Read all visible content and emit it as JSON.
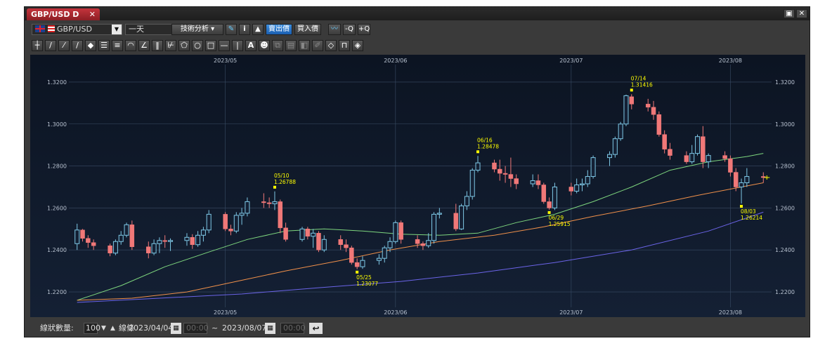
{
  "window": {
    "tab_title": "GBP/USD D",
    "close_glyph": "✕",
    "restore_glyph": "▣"
  },
  "toolbar": {
    "symbol": "GBP/USD",
    "flag_icon": "uk-flag-icon",
    "period": "一天",
    "tech_analysis": "技術分析",
    "info_glyph": "i",
    "sell_price": "賣出價",
    "buy_price": "買入價",
    "zoom_out": "-Q",
    "zoom_in": "+Q"
  },
  "drawing_tools": [
    "crosshair-icon",
    "line-icon",
    "ray-icon",
    "extended-line-icon",
    "ruler-icon",
    "channel-icon",
    "parallel-lines-icon",
    "arc-icon",
    "fibonacci-fan-icon",
    "vertical-lines-icon",
    "pitchfork-icon",
    "polygon-icon",
    "circle-icon",
    "rectangle-icon",
    "horizontal-line-icon",
    "vertical-line-icon",
    "text-icon",
    "icon-stamp-icon",
    "copy-icon",
    "delete-icon",
    "hide-icon",
    "pen-icon",
    "eraser-icon",
    "magnet-icon",
    "tag-icon"
  ],
  "statusbar": {
    "count_label": "線狀數量:",
    "count_value": "100",
    "lines_label": "線條",
    "from_date": "2023/04/04",
    "from_time": "00:00",
    "range_sep": "~",
    "to_date": "2023/08/07",
    "to_time": "00:00"
  },
  "colors": {
    "up_candle": "#7ec8e6",
    "down_candle": "#f07878",
    "ma_short": "#7ed67e",
    "ma_mid": "#f0904a",
    "ma_long": "#6b64e8",
    "annotation": "#ffff00",
    "background": "#142034"
  },
  "chart_data": {
    "type": "candlestick",
    "ylim": [
      1.214,
      1.327
    ],
    "y_ticks": [
      "1.2200",
      "1.2400",
      "1.2600",
      "1.2800",
      "1.3000",
      "1.3200"
    ],
    "month_labels": [
      {
        "date": "2023/05/01",
        "label": "2023/05"
      },
      {
        "date": "2023/06/01",
        "label": "2023/06"
      },
      {
        "date": "2023/07/03",
        "label": "2023/07"
      },
      {
        "date": "2023/08/01",
        "label": "2023/08"
      }
    ],
    "candles": [
      {
        "d": "2023/04/04",
        "o": 1.243,
        "h": 1.2525,
        "l": 1.24,
        "c": 1.2495
      },
      {
        "d": "2023/04/05",
        "o": 1.2495,
        "h": 1.25,
        "l": 1.244,
        "c": 1.2455
      },
      {
        "d": "2023/04/06",
        "o": 1.2455,
        "h": 1.247,
        "l": 1.241,
        "c": 1.2435
      },
      {
        "d": "2023/04/07",
        "o": 1.2435,
        "h": 1.245,
        "l": 1.24,
        "c": 1.242
      },
      {
        "d": "2023/04/10",
        "o": 1.242,
        "h": 1.243,
        "l": 1.237,
        "c": 1.2385
      },
      {
        "d": "2023/04/11",
        "o": 1.2385,
        "h": 1.245,
        "l": 1.2375,
        "c": 1.244
      },
      {
        "d": "2023/04/12",
        "o": 1.244,
        "h": 1.249,
        "l": 1.2425,
        "c": 1.247
      },
      {
        "d": "2023/04/13",
        "o": 1.247,
        "h": 1.253,
        "l": 1.246,
        "c": 1.252
      },
      {
        "d": "2023/04/14",
        "o": 1.252,
        "h": 1.254,
        "l": 1.24,
        "c": 1.2415
      },
      {
        "d": "2023/04/17",
        "o": 1.2415,
        "h": 1.244,
        "l": 1.236,
        "c": 1.2385
      },
      {
        "d": "2023/04/18",
        "o": 1.2385,
        "h": 1.245,
        "l": 1.2375,
        "c": 1.243
      },
      {
        "d": "2023/04/19",
        "o": 1.243,
        "h": 1.246,
        "l": 1.2385,
        "c": 1.2445
      },
      {
        "d": "2023/04/20",
        "o": 1.2445,
        "h": 1.247,
        "l": 1.241,
        "c": 1.244
      },
      {
        "d": "2023/04/21",
        "o": 1.244,
        "h": 1.2455,
        "l": 1.2395,
        "c": 1.2445
      },
      {
        "d": "2023/04/24",
        "o": 1.2445,
        "h": 1.248,
        "l": 1.242,
        "c": 1.246
      },
      {
        "d": "2023/04/25",
        "o": 1.246,
        "h": 1.2475,
        "l": 1.2405,
        "c": 1.2425
      },
      {
        "d": "2023/04/26",
        "o": 1.2425,
        "h": 1.249,
        "l": 1.2415,
        "c": 1.247
      },
      {
        "d": "2023/04/27",
        "o": 1.247,
        "h": 1.251,
        "l": 1.244,
        "c": 1.2495
      },
      {
        "d": "2023/04/28",
        "o": 1.2495,
        "h": 1.259,
        "l": 1.248,
        "c": 1.257
      },
      {
        "d": "2023/05/01",
        "o": 1.257,
        "h": 1.258,
        "l": 1.249,
        "c": 1.25
      },
      {
        "d": "2023/05/02",
        "o": 1.25,
        "h": 1.252,
        "l": 1.247,
        "c": 1.249
      },
      {
        "d": "2023/05/03",
        "o": 1.249,
        "h": 1.258,
        "l": 1.248,
        "c": 1.2565
      },
      {
        "d": "2023/05/04",
        "o": 1.2565,
        "h": 1.26,
        "l": 1.252,
        "c": 1.2575
      },
      {
        "d": "2023/05/05",
        "o": 1.2575,
        "h": 1.265,
        "l": 1.256,
        "c": 1.263
      },
      {
        "d": "2023/05/08",
        "o": 1.263,
        "h": 1.267,
        "l": 1.26,
        "c": 1.2625
      },
      {
        "d": "2023/05/09",
        "o": 1.2625,
        "h": 1.265,
        "l": 1.26,
        "c": 1.262
      },
      {
        "d": "2023/05/10",
        "o": 1.262,
        "h": 1.2679,
        "l": 1.259,
        "c": 1.263
      },
      {
        "d": "2023/05/11",
        "o": 1.263,
        "h": 1.264,
        "l": 1.248,
        "c": 1.2505
      },
      {
        "d": "2023/05/12",
        "o": 1.2505,
        "h": 1.253,
        "l": 1.244,
        "c": 1.245
      },
      {
        "d": "2023/05/15",
        "o": 1.245,
        "h": 1.251,
        "l": 1.244,
        "c": 1.25
      },
      {
        "d": "2023/05/16",
        "o": 1.25,
        "h": 1.251,
        "l": 1.245,
        "c": 1.2465
      },
      {
        "d": "2023/05/17",
        "o": 1.2465,
        "h": 1.25,
        "l": 1.241,
        "c": 1.248
      },
      {
        "d": "2023/05/18",
        "o": 1.248,
        "h": 1.249,
        "l": 1.239,
        "c": 1.24
      },
      {
        "d": "2023/05/19",
        "o": 1.24,
        "h": 1.247,
        "l": 1.239,
        "c": 1.245
      },
      {
        "d": "2023/05/22",
        "o": 1.245,
        "h": 1.247,
        "l": 1.24,
        "c": 1.2425
      },
      {
        "d": "2023/05/23",
        "o": 1.2425,
        "h": 1.245,
        "l": 1.239,
        "c": 1.241
      },
      {
        "d": "2023/05/24",
        "o": 1.241,
        "h": 1.242,
        "l": 1.233,
        "c": 1.234
      },
      {
        "d": "2023/05/25",
        "o": 1.234,
        "h": 1.236,
        "l": 1.2308,
        "c": 1.232
      },
      {
        "d": "2023/05/26",
        "o": 1.232,
        "h": 1.237,
        "l": 1.231,
        "c": 1.235
      },
      {
        "d": "2023/05/29",
        "o": 1.235,
        "h": 1.238,
        "l": 1.233,
        "c": 1.236
      },
      {
        "d": "2023/05/30",
        "o": 1.236,
        "h": 1.242,
        "l": 1.234,
        "c": 1.241
      },
      {
        "d": "2023/05/31",
        "o": 1.241,
        "h": 1.246,
        "l": 1.239,
        "c": 1.244
      },
      {
        "d": "2023/06/01",
        "o": 1.244,
        "h": 1.254,
        "l": 1.243,
        "c": 1.253
      },
      {
        "d": "2023/06/02",
        "o": 1.253,
        "h": 1.254,
        "l": 1.243,
        "c": 1.245
      },
      {
        "d": "2023/06/05",
        "o": 1.245,
        "h": 1.247,
        "l": 1.241,
        "c": 1.243
      },
      {
        "d": "2023/06/06",
        "o": 1.243,
        "h": 1.244,
        "l": 1.24,
        "c": 1.242
      },
      {
        "d": "2023/06/07",
        "o": 1.242,
        "h": 1.248,
        "l": 1.241,
        "c": 1.2445
      },
      {
        "d": "2023/06/08",
        "o": 1.2445,
        "h": 1.258,
        "l": 1.243,
        "c": 1.257
      },
      {
        "d": "2023/06/09",
        "o": 1.257,
        "h": 1.26,
        "l": 1.255,
        "c": 1.2575
      },
      {
        "d": "2023/06/12",
        "o": 1.2575,
        "h": 1.262,
        "l": 1.249,
        "c": 1.25
      },
      {
        "d": "2023/06/13",
        "o": 1.25,
        "h": 1.262,
        "l": 1.2495,
        "c": 1.261
      },
      {
        "d": "2023/06/14",
        "o": 1.261,
        "h": 1.268,
        "l": 1.259,
        "c": 1.2655
      },
      {
        "d": "2023/06/15",
        "o": 1.2655,
        "h": 1.279,
        "l": 1.264,
        "c": 1.278
      },
      {
        "d": "2023/06/16",
        "o": 1.278,
        "h": 1.2848,
        "l": 1.277,
        "c": 1.2815
      },
      {
        "d": "2023/06/19",
        "o": 1.2815,
        "h": 1.283,
        "l": 1.277,
        "c": 1.2785
      },
      {
        "d": "2023/06/20",
        "o": 1.2785,
        "h": 1.283,
        "l": 1.273,
        "c": 1.2765
      },
      {
        "d": "2023/06/21",
        "o": 1.2765,
        "h": 1.28,
        "l": 1.272,
        "c": 1.276
      },
      {
        "d": "2023/06/22",
        "o": 1.276,
        "h": 1.284,
        "l": 1.27,
        "c": 1.274
      },
      {
        "d": "2023/06/23",
        "o": 1.274,
        "h": 1.276,
        "l": 1.269,
        "c": 1.2715
      },
      {
        "d": "2023/06/26",
        "o": 1.2715,
        "h": 1.276,
        "l": 1.27,
        "c": 1.273
      },
      {
        "d": "2023/06/27",
        "o": 1.273,
        "h": 1.276,
        "l": 1.269,
        "c": 1.271
      },
      {
        "d": "2023/06/28",
        "o": 1.271,
        "h": 1.272,
        "l": 1.262,
        "c": 1.263
      },
      {
        "d": "2023/06/29",
        "o": 1.263,
        "h": 1.265,
        "l": 1.2592,
        "c": 1.26
      },
      {
        "d": "2023/06/30",
        "o": 1.26,
        "h": 1.272,
        "l": 1.259,
        "c": 1.27
      },
      {
        "d": "2023/07/03",
        "o": 1.27,
        "h": 1.272,
        "l": 1.266,
        "c": 1.268
      },
      {
        "d": "2023/07/04",
        "o": 1.268,
        "h": 1.274,
        "l": 1.267,
        "c": 1.271
      },
      {
        "d": "2023/07/05",
        "o": 1.271,
        "h": 1.274,
        "l": 1.268,
        "c": 1.2715
      },
      {
        "d": "2023/07/06",
        "o": 1.2715,
        "h": 1.278,
        "l": 1.27,
        "c": 1.275
      },
      {
        "d": "2023/07/07",
        "o": 1.275,
        "h": 1.285,
        "l": 1.274,
        "c": 1.284
      },
      {
        "d": "2023/07/10",
        "o": 1.284,
        "h": 1.287,
        "l": 1.28,
        "c": 1.2855
      },
      {
        "d": "2023/07/11",
        "o": 1.2855,
        "h": 1.294,
        "l": 1.284,
        "c": 1.293
      },
      {
        "d": "2023/07/12",
        "o": 1.293,
        "h": 1.301,
        "l": 1.292,
        "c": 1.3
      },
      {
        "d": "2023/07/13",
        "o": 1.3,
        "h": 1.314,
        "l": 1.299,
        "c": 1.3135
      },
      {
        "d": "2023/07/14",
        "o": 1.313,
        "h": 1.3142,
        "l": 1.307,
        "c": 1.3095
      },
      {
        "d": "2023/07/17",
        "o": 1.3095,
        "h": 1.312,
        "l": 1.306,
        "c": 1.308
      },
      {
        "d": "2023/07/18",
        "o": 1.308,
        "h": 1.311,
        "l": 1.302,
        "c": 1.3045
      },
      {
        "d": "2023/07/19",
        "o": 1.3045,
        "h": 1.306,
        "l": 1.294,
        "c": 1.295
      },
      {
        "d": "2023/07/20",
        "o": 1.295,
        "h": 1.297,
        "l": 1.286,
        "c": 1.288
      },
      {
        "d": "2023/07/21",
        "o": 1.288,
        "h": 1.291,
        "l": 1.283,
        "c": 1.285
      },
      {
        "d": "2023/07/24",
        "o": 1.285,
        "h": 1.287,
        "l": 1.281,
        "c": 1.282
      },
      {
        "d": "2023/07/25",
        "o": 1.282,
        "h": 1.29,
        "l": 1.281,
        "c": 1.286
      },
      {
        "d": "2023/07/26",
        "o": 1.286,
        "h": 1.295,
        "l": 1.285,
        "c": 1.294
      },
      {
        "d": "2023/07/27",
        "o": 1.294,
        "h": 1.299,
        "l": 1.279,
        "c": 1.282
      },
      {
        "d": "2023/07/28",
        "o": 1.282,
        "h": 1.286,
        "l": 1.279,
        "c": 1.285
      },
      {
        "d": "2023/07/31",
        "o": 1.285,
        "h": 1.287,
        "l": 1.282,
        "c": 1.2835
      },
      {
        "d": "2023/08/01",
        "o": 1.2835,
        "h": 1.285,
        "l": 1.275,
        "c": 1.277
      },
      {
        "d": "2023/08/02",
        "o": 1.277,
        "h": 1.279,
        "l": 1.268,
        "c": 1.27
      },
      {
        "d": "2023/08/03",
        "o": 1.27,
        "h": 1.274,
        "l": 1.2621,
        "c": 1.272
      },
      {
        "d": "2023/08/04",
        "o": 1.272,
        "h": 1.279,
        "l": 1.27,
        "c": 1.275
      },
      {
        "d": "2023/08/07",
        "o": 1.275,
        "h": 1.277,
        "l": 1.272,
        "c": 1.2745
      }
    ],
    "series": [
      {
        "key": "ma_short",
        "points": [
          [
            "2023/04/04",
            1.216
          ],
          [
            "2023/04/12",
            1.223
          ],
          [
            "2023/04/20",
            1.232
          ],
          [
            "2023/04/28",
            1.239
          ],
          [
            "2023/05/05",
            1.245
          ],
          [
            "2023/05/12",
            1.249
          ],
          [
            "2023/05/19",
            1.25
          ],
          [
            "2023/05/26",
            1.249
          ],
          [
            "2023/06/02",
            1.2475
          ],
          [
            "2023/06/09",
            1.247
          ],
          [
            "2023/06/16",
            1.248
          ],
          [
            "2023/06/23",
            1.253
          ],
          [
            "2023/06/30",
            1.257
          ],
          [
            "2023/07/07",
            1.263
          ],
          [
            "2023/07/14",
            1.27
          ],
          [
            "2023/07/21",
            1.278
          ],
          [
            "2023/07/28",
            1.282
          ],
          [
            "2023/08/04",
            1.2845
          ],
          [
            "2023/08/07",
            1.286
          ]
        ]
      },
      {
        "key": "ma_mid",
        "points": [
          [
            "2023/04/04",
            1.216
          ],
          [
            "2023/04/14",
            1.217
          ],
          [
            "2023/04/24",
            1.22
          ],
          [
            "2023/05/03",
            1.225
          ],
          [
            "2023/05/12",
            1.23
          ],
          [
            "2023/05/22",
            1.235
          ],
          [
            "2023/05/31",
            1.24
          ],
          [
            "2023/06/09",
            1.244
          ],
          [
            "2023/06/19",
            1.247
          ],
          [
            "2023/06/28",
            1.251
          ],
          [
            "2023/07/07",
            1.256
          ],
          [
            "2023/07/17",
            1.261
          ],
          [
            "2023/07/26",
            1.266
          ],
          [
            "2023/08/03",
            1.27
          ],
          [
            "2023/08/07",
            1.272
          ]
        ]
      },
      {
        "key": "ma_long",
        "points": [
          [
            "2023/04/04",
            1.215
          ],
          [
            "2023/04/19",
            1.217
          ],
          [
            "2023/05/04",
            1.219
          ],
          [
            "2023/05/18",
            1.222
          ],
          [
            "2023/06/02",
            1.225
          ],
          [
            "2023/06/16",
            1.229
          ],
          [
            "2023/06/30",
            1.234
          ],
          [
            "2023/07/14",
            1.24
          ],
          [
            "2023/07/28",
            1.249
          ],
          [
            "2023/08/07",
            1.258
          ]
        ]
      }
    ],
    "annotations": [
      {
        "date": "2023/05/10",
        "label": "05/10",
        "value": "1.26788",
        "pos": "above"
      },
      {
        "date": "2023/05/25",
        "label": "05/25",
        "value": "1.23077",
        "pos": "below"
      },
      {
        "date": "2023/06/16",
        "label": "06/16",
        "value": "1.28478",
        "pos": "above"
      },
      {
        "date": "2023/06/29",
        "label": "06/29",
        "value": "1.25915",
        "pos": "below"
      },
      {
        "date": "2023/07/14",
        "label": "07/14",
        "value": "1.31416",
        "pos": "above"
      },
      {
        "date": "2023/08/03",
        "label": "08/03",
        "value": "1.26214",
        "pos": "below"
      }
    ],
    "current_marker": {
      "date": "2023/08/07",
      "y": 1.2745
    }
  }
}
